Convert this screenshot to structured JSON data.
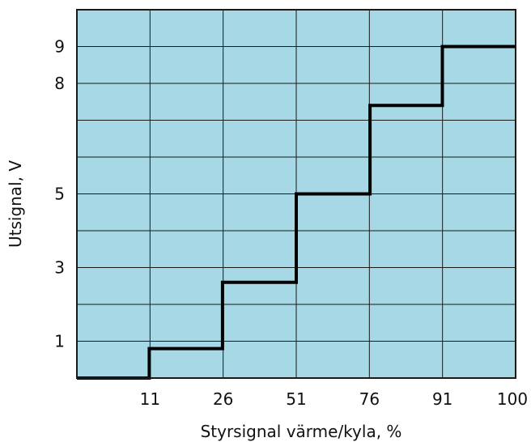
{
  "chart_data": {
    "type": "line",
    "subtype": "step",
    "title": "",
    "xlabel": "Styrsignal värme/kyla, %",
    "ylabel": "Utsignal, V",
    "xlim": [
      0,
      100
    ],
    "ylim": [
      0,
      10
    ],
    "x_ticks": [
      {
        "value": 11,
        "label": "11"
      },
      {
        "value": 26,
        "label": "26"
      },
      {
        "value": 51,
        "label": "51"
      },
      {
        "value": 76,
        "label": "76"
      },
      {
        "value": 91,
        "label": "91"
      },
      {
        "value": 100,
        "label": "100"
      }
    ],
    "y_ticks": [
      {
        "value": 1,
        "label": "1"
      },
      {
        "value": 3,
        "label": "3"
      },
      {
        "value": 5,
        "label": "5"
      },
      {
        "value": 8,
        "label": "8"
      },
      {
        "value": 9,
        "label": "9"
      }
    ],
    "series": [
      {
        "x": [
          0,
          16.5,
          16.5,
          33.2,
          33.2,
          50.0,
          50.0,
          66.8,
          66.8,
          83.3,
          83.3,
          100
        ],
        "y": [
          0,
          0,
          0.8,
          0.8,
          2.6,
          2.6,
          5.0,
          5.0,
          7.4,
          7.4,
          9.0,
          9.0
        ]
      }
    ],
    "grid": true,
    "grid_columns": 6,
    "grid_rows": 10,
    "legend": "none",
    "colors": {
      "plot_background": "#a6d8e6",
      "grid": "#1a1a1a",
      "line": "#000000"
    }
  }
}
